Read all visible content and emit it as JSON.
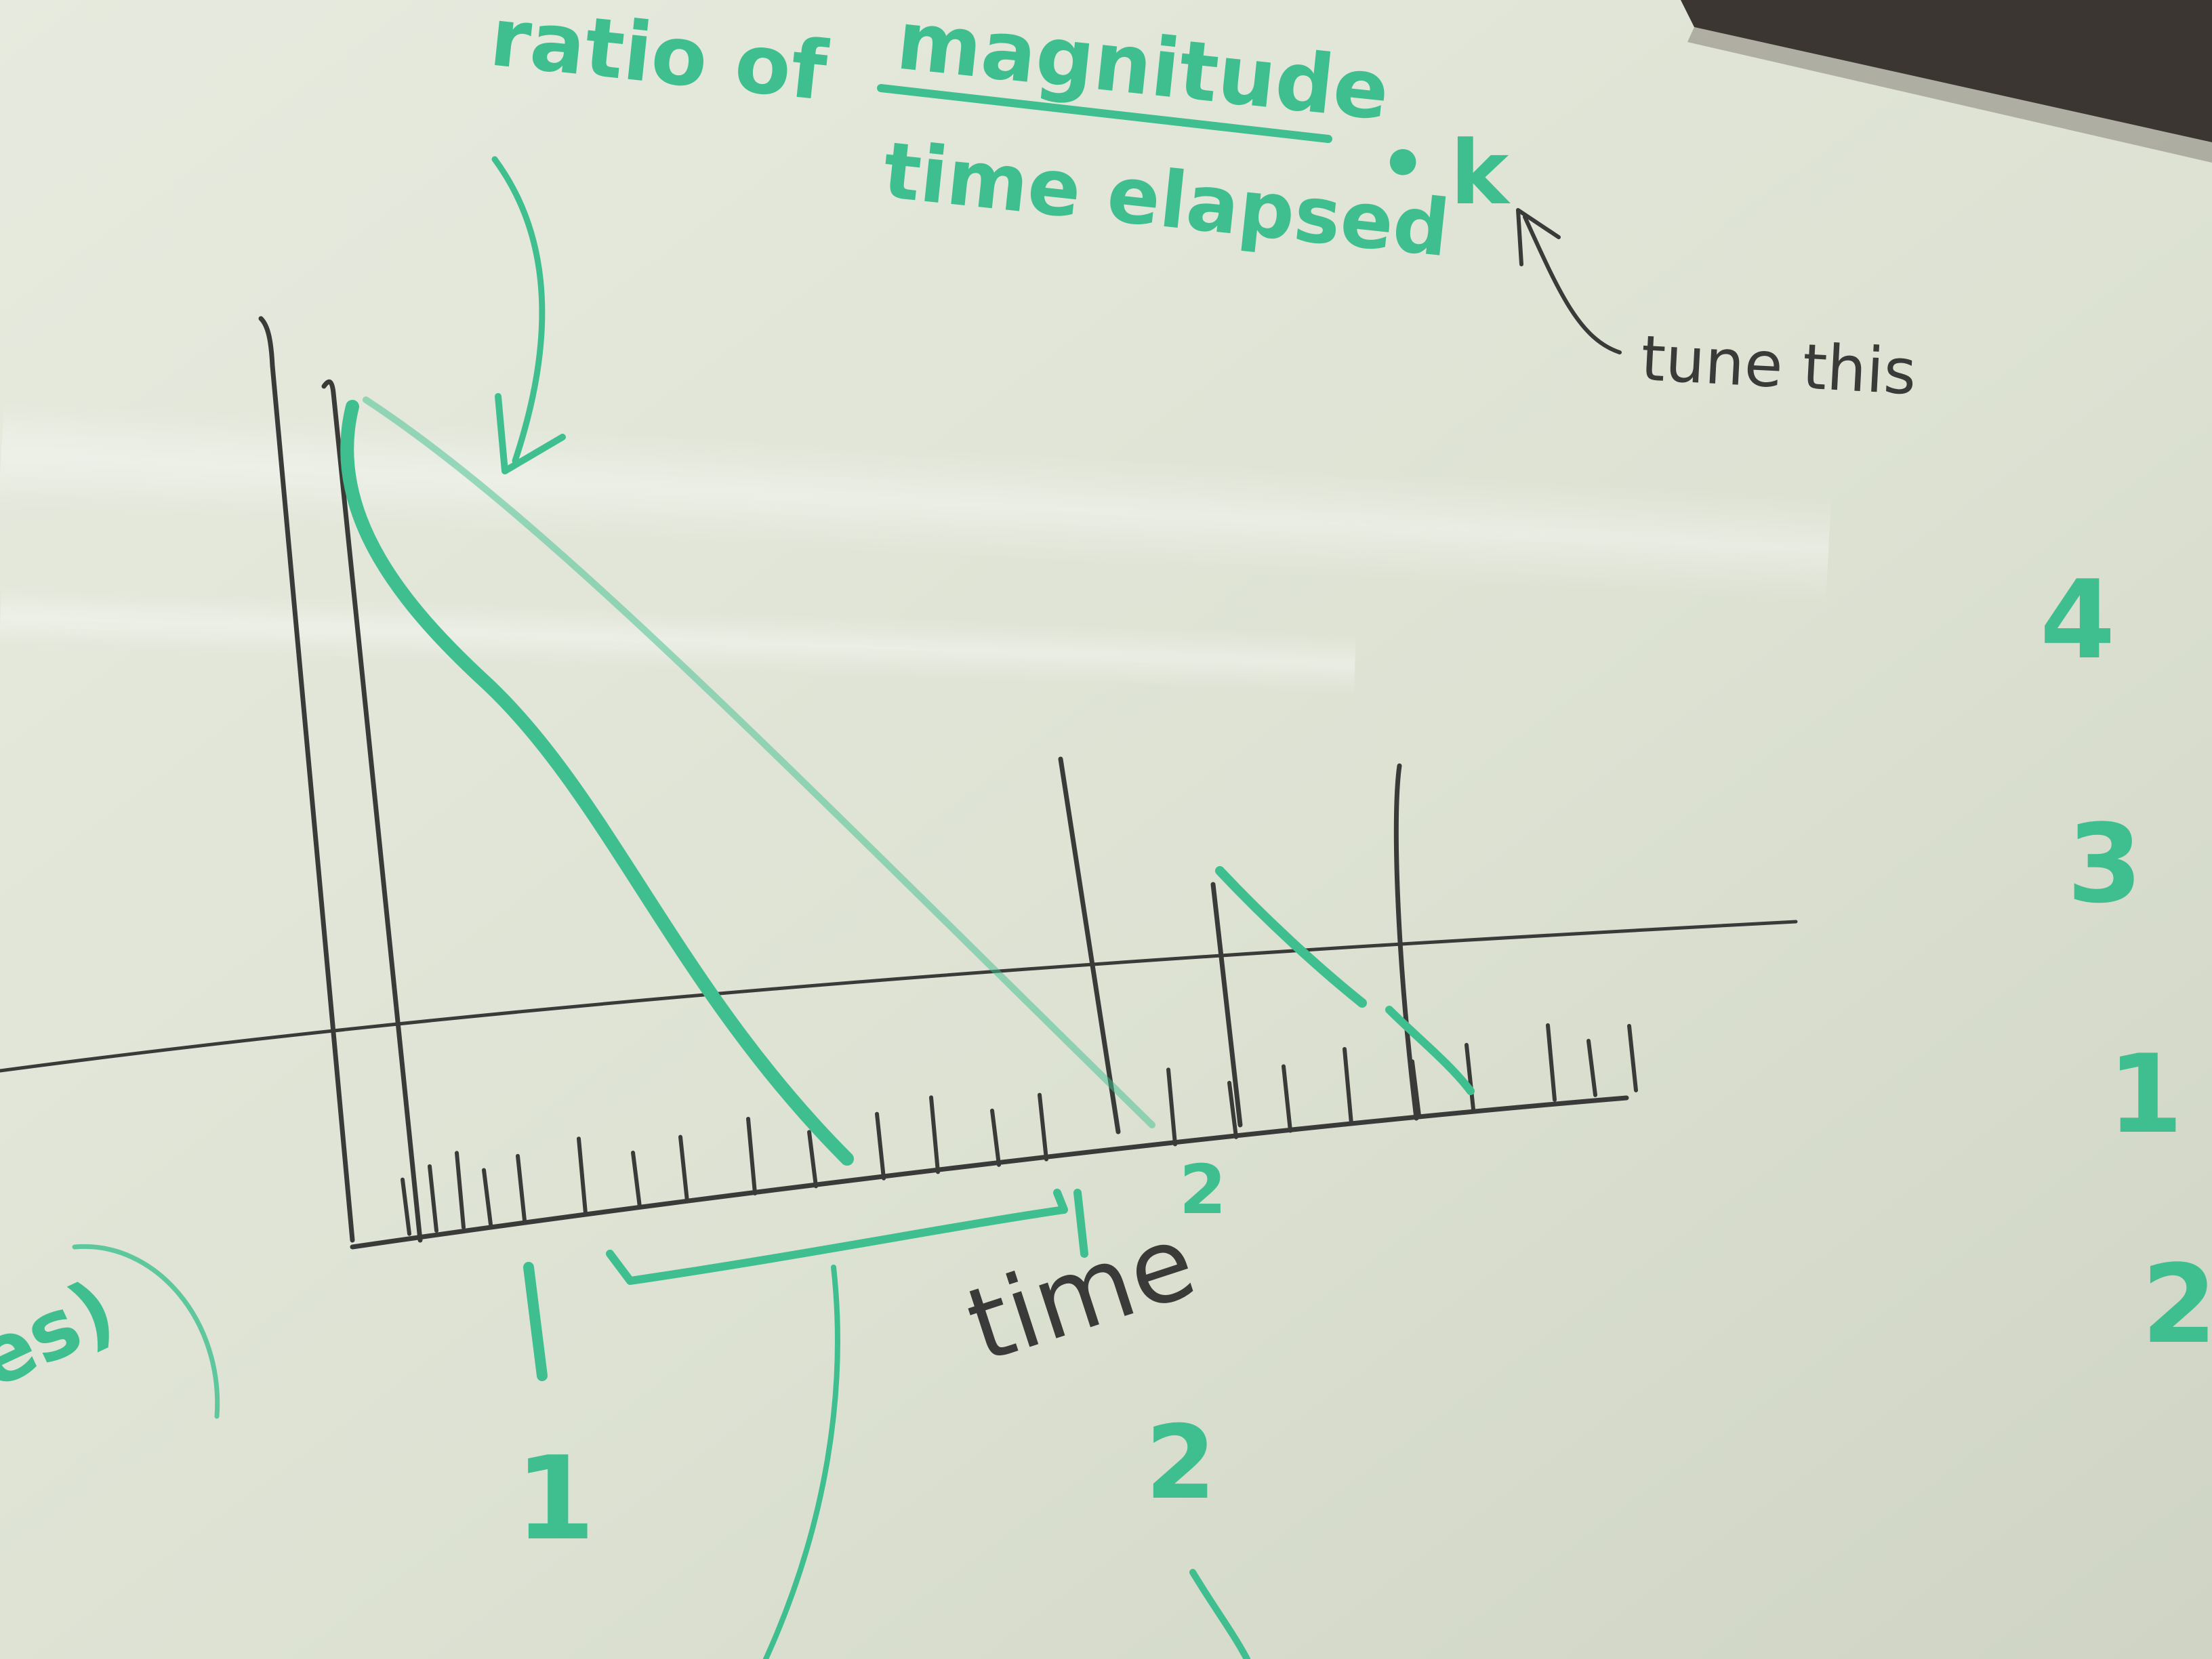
{
  "scene": {
    "description_free": true,
    "colors": {
      "board": "#e3e7da",
      "board_shade": "#c9cfbf",
      "frame": "#3b3631",
      "green_marker": "#3fbf8f",
      "black_marker": "#3a3a38",
      "glare": "#f3f5ee"
    }
  },
  "texts": {
    "formula_prefix": "ratio of",
    "formula_numerator": "magnitude",
    "formula_denominator": "time elapsed",
    "formula_operator": "•",
    "formula_constant": "k",
    "tune_note": "tune this",
    "axis_label": "time",
    "label_peak_two": "2",
    "label_bracket_one": "1",
    "label_bottom_one": "1",
    "label_bottom_two": "2",
    "right_numbers": [
      "4",
      "3",
      "1",
      "2"
    ],
    "left_fragment": "es)"
  }
}
